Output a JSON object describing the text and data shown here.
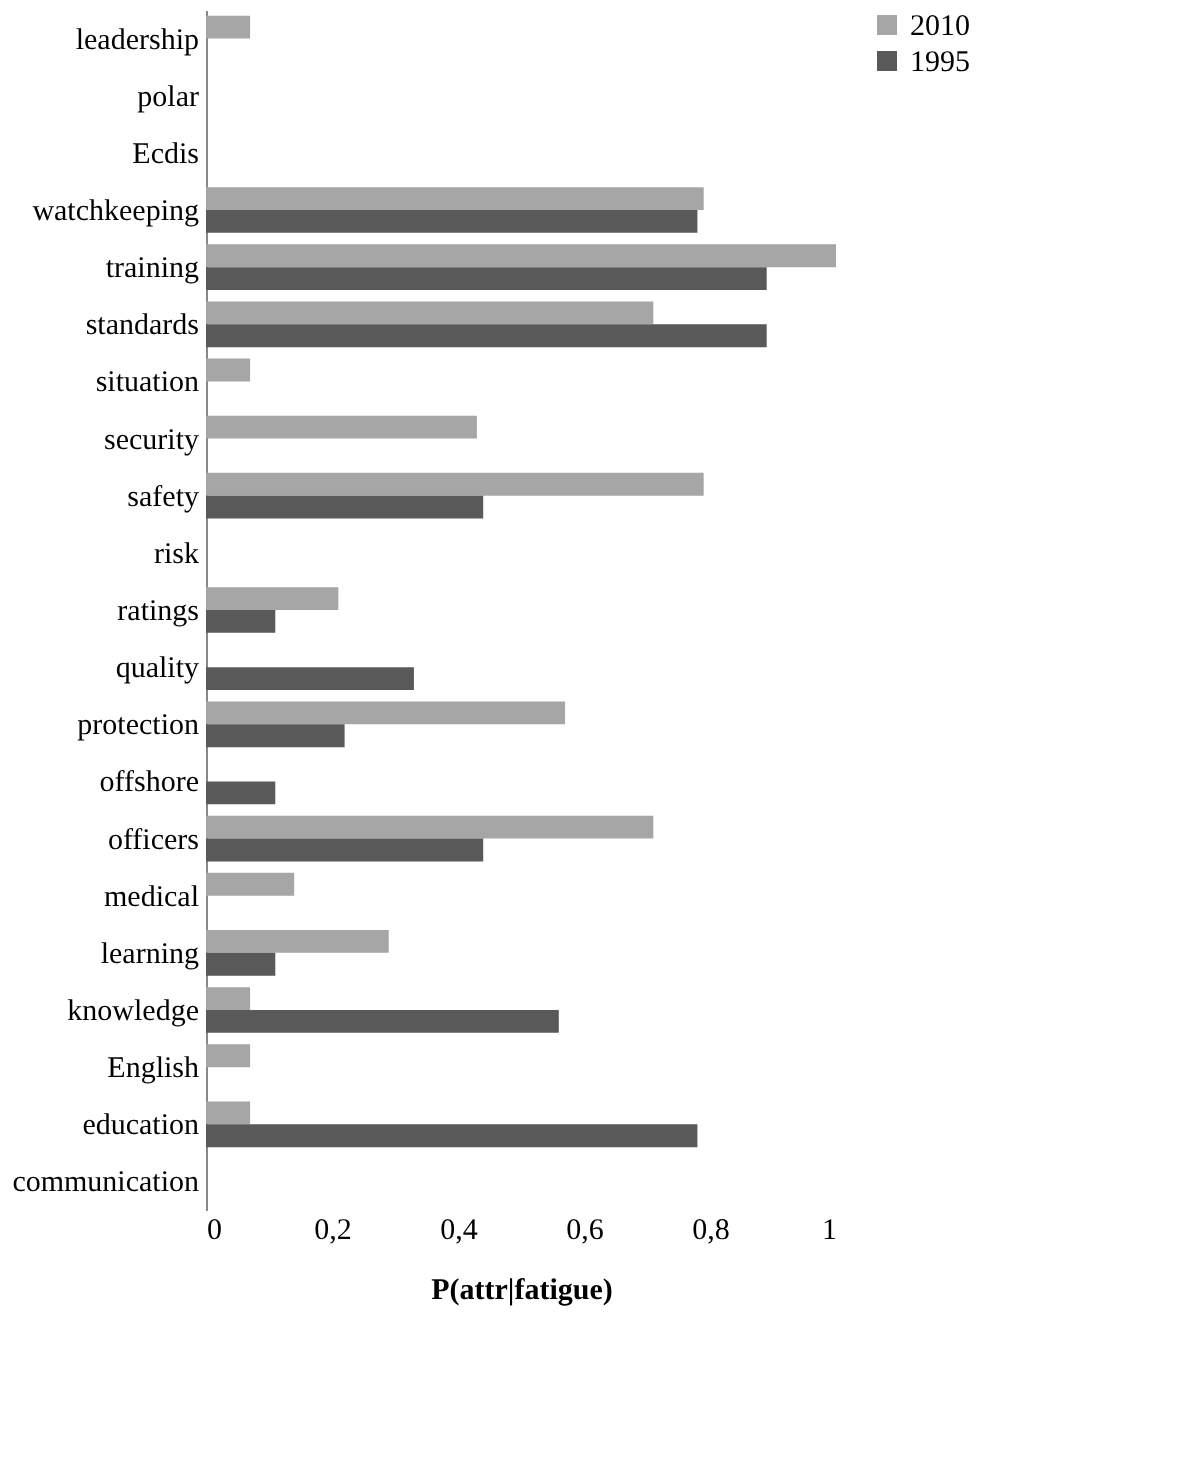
{
  "chart_data": {
    "type": "bar",
    "orientation": "horizontal",
    "xlabel": "P(attr|fatigue)",
    "categories": [
      "leadership",
      "polar",
      "Ecdis",
      "watchkeeping",
      "training",
      "standards",
      "situation",
      "security",
      "safety",
      "risk",
      "ratings",
      "quality",
      "protection",
      "offshore",
      "officers",
      "medical",
      "learning",
      "knowledge",
      "English",
      "education",
      "communication"
    ],
    "series": [
      {
        "name": "2010",
        "color": "#a6a6a6",
        "values": [
          0.07,
          0,
          0,
          0.79,
          1.0,
          0.71,
          0.07,
          0.43,
          0.79,
          0,
          0.21,
          0,
          0.57,
          0,
          0.71,
          0.14,
          0.29,
          0.07,
          0.07,
          0.07,
          0
        ]
      },
      {
        "name": "1995",
        "color": "#595959",
        "values": [
          0,
          0,
          0,
          0.78,
          0.89,
          0.89,
          0,
          0,
          0.44,
          0,
          0.11,
          0.33,
          0.22,
          0.11,
          0.44,
          0,
          0.11,
          0.56,
          0,
          0.78,
          0
        ]
      }
    ],
    "xlim": [
      0,
      1
    ],
    "xticks": [
      0,
      {
        "value": 0.2,
        "label": "0,2"
      },
      {
        "value": 0.4,
        "label": "0,4"
      },
      {
        "value": 0.6,
        "label": "0,6"
      },
      {
        "value": 0.8,
        "label": "0,8"
      },
      1
    ],
    "legend": "right",
    "grid": false
  }
}
